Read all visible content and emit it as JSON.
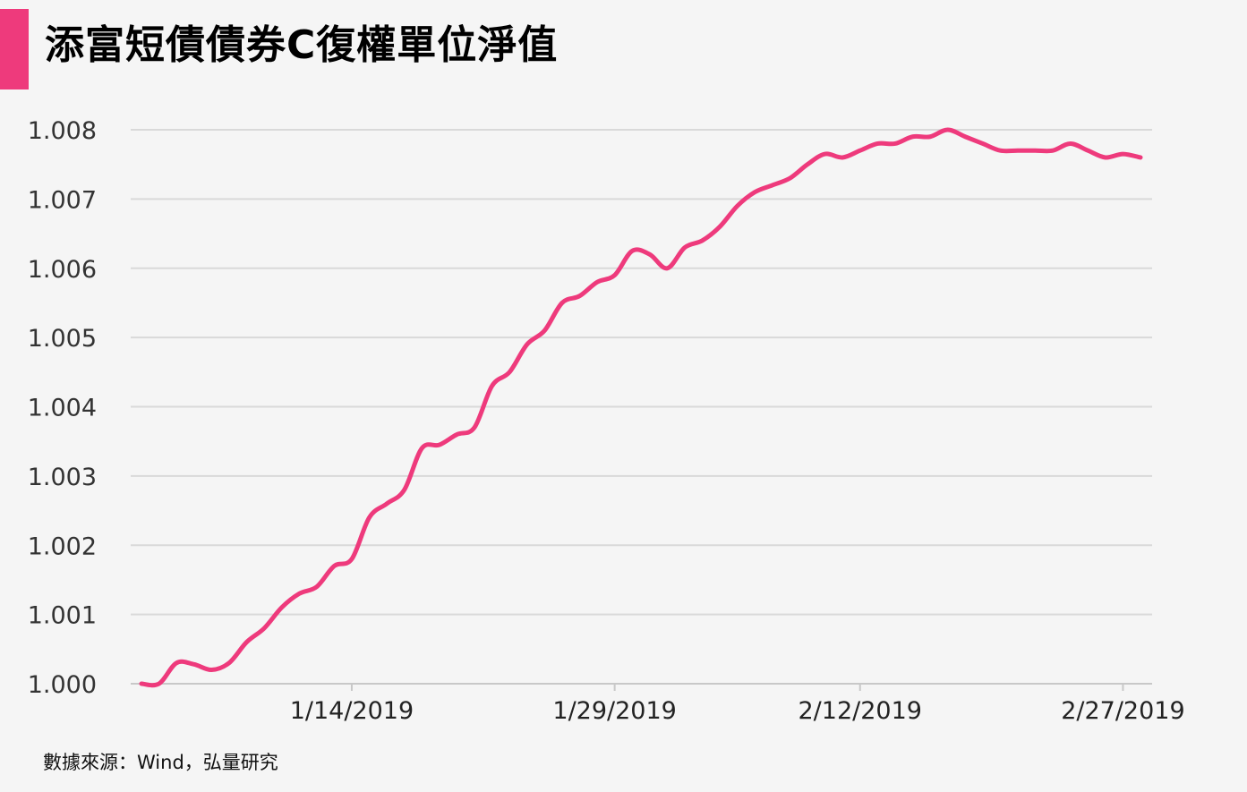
{
  "title": "添富短債債券C復權單位淨值",
  "source": "數據來源：Wind，弘量研究",
  "colors": {
    "accent": "#ee3a7c",
    "line": "#ee3a7c",
    "grid": "#d9d9d9",
    "background": "#f5f5f5"
  },
  "chart_data": {
    "type": "line",
    "title": "添富短債債券C復權單位淨值",
    "xlabel": "",
    "ylabel": "",
    "grid": "horizontal",
    "legend": "none",
    "ylim": [
      1.0,
      1.008
    ],
    "yticks": [
      1.0,
      1.001,
      1.002,
      1.003,
      1.004,
      1.005,
      1.006,
      1.007,
      1.008
    ],
    "ytick_labels": [
      "1.000",
      "1.001",
      "1.002",
      "1.003",
      "1.004",
      "1.005",
      "1.006",
      "1.007",
      "1.008"
    ],
    "xlim": [
      "2019-01-02",
      "2019-02-28"
    ],
    "xticks": [
      "2019-01-14",
      "2019-01-29",
      "2019-02-12",
      "2019-02-27"
    ],
    "xtick_labels": [
      "1/14/2019",
      "1/29/2019",
      "2/12/2019",
      "2/27/2019"
    ],
    "series": [
      {
        "x": [
          "2019-01-02",
          "2019-01-03",
          "2019-01-04",
          "2019-01-05",
          "2019-01-06",
          "2019-01-07",
          "2019-01-08",
          "2019-01-09",
          "2019-01-10",
          "2019-01-11",
          "2019-01-12",
          "2019-01-13",
          "2019-01-14",
          "2019-01-15",
          "2019-01-16",
          "2019-01-17",
          "2019-01-18",
          "2019-01-19",
          "2019-01-20",
          "2019-01-21",
          "2019-01-22",
          "2019-01-23",
          "2019-01-24",
          "2019-01-25",
          "2019-01-26",
          "2019-01-27",
          "2019-01-28",
          "2019-01-29",
          "2019-01-30",
          "2019-01-31",
          "2019-02-01",
          "2019-02-02",
          "2019-02-03",
          "2019-02-04",
          "2019-02-05",
          "2019-02-06",
          "2019-02-07",
          "2019-02-08",
          "2019-02-09",
          "2019-02-10",
          "2019-02-11",
          "2019-02-12",
          "2019-02-13",
          "2019-02-14",
          "2019-02-15",
          "2019-02-16",
          "2019-02-17",
          "2019-02-18",
          "2019-02-19",
          "2019-02-20",
          "2019-02-21",
          "2019-02-22",
          "2019-02-23",
          "2019-02-24",
          "2019-02-25",
          "2019-02-26",
          "2019-02-27",
          "2019-02-28"
        ],
        "values": [
          1.0,
          1.0,
          1.0003,
          1.00028,
          1.0002,
          1.0003,
          1.0006,
          1.0008,
          1.0011,
          1.0013,
          1.0014,
          1.0017,
          1.0018,
          1.0024,
          1.0026,
          1.0028,
          1.0034,
          1.00345,
          1.0036,
          1.0037,
          1.0043,
          1.0045,
          1.0049,
          1.0051,
          1.0055,
          1.0056,
          1.0058,
          1.0059,
          1.00625,
          1.0062,
          1.006,
          1.0063,
          1.0064,
          1.0066,
          1.0069,
          1.0071,
          1.0072,
          1.0073,
          1.0075,
          1.00765,
          1.0076,
          1.0077,
          1.0078,
          1.0078,
          1.0079,
          1.0079,
          1.008,
          1.0079,
          1.0078,
          1.0077,
          1.0077,
          1.0077,
          1.0077,
          1.0078,
          1.0077,
          1.0076,
          1.00765,
          1.0076
        ]
      }
    ]
  }
}
